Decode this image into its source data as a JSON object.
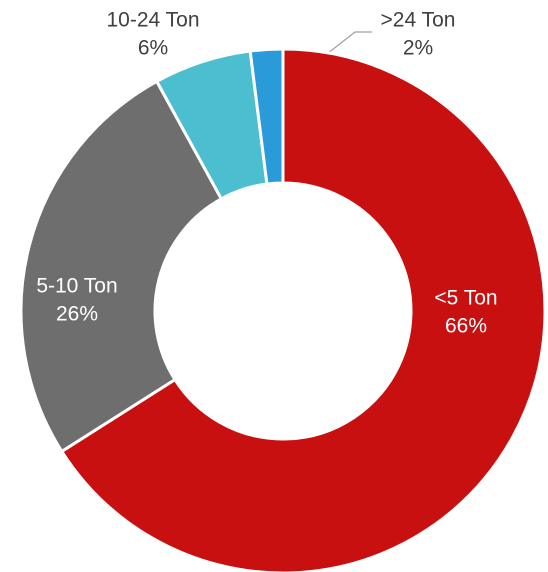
{
  "chart_data": {
    "type": "donut",
    "categories": [
      "<5 Ton",
      "5-10 Ton",
      "10-24 Ton",
      ">24 Ton"
    ],
    "values": [
      66,
      26,
      6,
      2
    ],
    "value_labels": [
      "66%",
      "26%",
      "6%",
      "2%"
    ],
    "colors": [
      "#c81010",
      "#6e6e6e",
      "#4bbfd0",
      "#2a9ad8"
    ]
  }
}
